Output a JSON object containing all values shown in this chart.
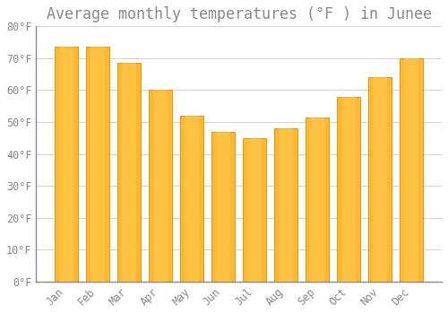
{
  "title": "Average monthly temperatures (°F ) in Junee",
  "months": [
    "Jan",
    "Feb",
    "Mar",
    "Apr",
    "May",
    "Jun",
    "Jul",
    "Aug",
    "Sep",
    "Oct",
    "Nov",
    "Dec"
  ],
  "values": [
    73.5,
    73.5,
    68.5,
    60.0,
    52.0,
    47.0,
    45.0,
    48.0,
    51.5,
    58.0,
    64.0,
    70.0
  ],
  "bar_color": "#FFA500",
  "bar_edge_color": "#E8940A",
  "background_color": "#FFFFFF",
  "grid_color": "#CCCCCC",
  "text_color": "#888888",
  "ylim": [
    0,
    80
  ],
  "yticks": [
    0,
    10,
    20,
    30,
    40,
    50,
    60,
    70,
    80
  ],
  "ytick_labels": [
    "0°F",
    "10°F",
    "20°F",
    "30°F",
    "40°F",
    "50°F",
    "60°F",
    "70°F",
    "80°F"
  ],
  "title_fontsize": 12,
  "tick_fontsize": 8.5
}
